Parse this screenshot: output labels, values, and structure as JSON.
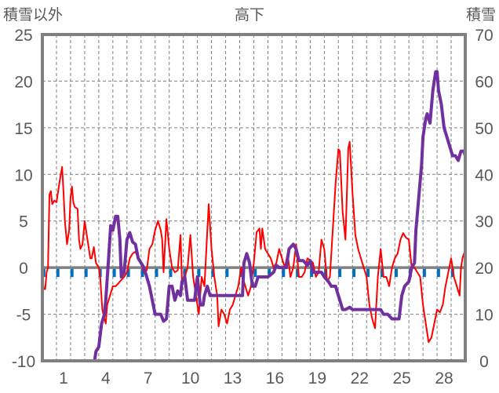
{
  "chart_data": {
    "type": "line",
    "title": "高下",
    "ylabel_left": "積雪以外",
    "ylabel_right": "積雪",
    "xlim": [
      -0.5,
      29.5
    ],
    "ylim_left": [
      -10,
      25
    ],
    "ylim_right": [
      0,
      70
    ],
    "yticks_left": [
      "25",
      "20",
      "15",
      "10",
      "5",
      "0",
      "-5",
      "-10"
    ],
    "yticks_right": [
      "70",
      "60",
      "50",
      "40",
      "30",
      "20",
      "10",
      "0"
    ],
    "xtick_labels": [
      "1",
      "4",
      "7",
      "10",
      "13",
      "16",
      "19",
      "22",
      "25",
      "28"
    ],
    "grid": true,
    "colors": {
      "temp": "#ff0000",
      "snow": "#7030a0",
      "marker": "#0070c0",
      "frame": "#808080"
    },
    "series": [
      {
        "name": "積雪以外",
        "axis": "left",
        "points": [
          [
            -0.5,
            -1.2
          ],
          [
            -0.4,
            -2.3
          ],
          [
            -0.3,
            -2.3
          ],
          [
            -0.2,
            -0.5
          ],
          [
            -0.1,
            0
          ],
          [
            0,
            7.8
          ],
          [
            0.1,
            8.2
          ],
          [
            0.2,
            6.8
          ],
          [
            0.35,
            7.2
          ],
          [
            0.5,
            7
          ],
          [
            0.6,
            8
          ],
          [
            0.75,
            9.5
          ],
          [
            0.9,
            10.8
          ],
          [
            1.0,
            8
          ],
          [
            1.1,
            5
          ],
          [
            1.25,
            2.5
          ],
          [
            1.4,
            4
          ],
          [
            1.5,
            7.5
          ],
          [
            1.6,
            8.7
          ],
          [
            1.7,
            7
          ],
          [
            1.8,
            6.5
          ],
          [
            2.0,
            6.3
          ],
          [
            2.1,
            3
          ],
          [
            2.2,
            2
          ],
          [
            2.35,
            2.5
          ],
          [
            2.5,
            5
          ],
          [
            2.6,
            4
          ],
          [
            2.7,
            3
          ],
          [
            2.9,
            1
          ],
          [
            3.0,
            1
          ],
          [
            3.15,
            2.2
          ],
          [
            3.3,
            0.5
          ],
          [
            3.5,
            0
          ],
          [
            3.6,
            -1
          ],
          [
            3.75,
            -4.5
          ],
          [
            3.9,
            -5.5
          ],
          [
            4.0,
            -6
          ],
          [
            4.1,
            -4
          ],
          [
            4.3,
            -3
          ],
          [
            4.5,
            -2
          ],
          [
            4.7,
            -2
          ],
          [
            5.0,
            -1.5
          ],
          [
            5.3,
            -1
          ],
          [
            5.5,
            -0.5
          ],
          [
            5.7,
            1
          ],
          [
            5.9,
            1.5
          ],
          [
            6.1,
            1.7
          ],
          [
            6.3,
            1
          ],
          [
            6.5,
            0.5
          ],
          [
            6.7,
            -0.5
          ],
          [
            6.9,
            -0.3
          ],
          [
            7.1,
            2
          ],
          [
            7.3,
            2.5
          ],
          [
            7.5,
            4
          ],
          [
            7.7,
            5
          ],
          [
            7.9,
            4
          ],
          [
            8.0,
            3
          ],
          [
            8.1,
            -0.5
          ],
          [
            8.3,
            5.2
          ],
          [
            8.5,
            2
          ],
          [
            8.7,
            0
          ],
          [
            8.9,
            -0.5
          ],
          [
            9.1,
            -0.3
          ],
          [
            9.3,
            3.5
          ],
          [
            9.4,
            -1.5
          ],
          [
            9.6,
            -1
          ],
          [
            9.8,
            0
          ],
          [
            10.0,
            3.5
          ],
          [
            10.2,
            -1
          ],
          [
            10.4,
            -3
          ],
          [
            10.6,
            -5
          ],
          [
            10.8,
            -1
          ],
          [
            11.0,
            -2
          ],
          [
            11.1,
            1
          ],
          [
            11.3,
            6.8
          ],
          [
            11.5,
            2
          ],
          [
            11.7,
            -1
          ],
          [
            11.9,
            -3
          ],
          [
            12.0,
            -6.3
          ],
          [
            12.2,
            -4.5
          ],
          [
            12.4,
            -5
          ],
          [
            12.6,
            -6
          ],
          [
            12.8,
            -4.5
          ],
          [
            13.0,
            -4
          ],
          [
            13.2,
            -3
          ],
          [
            13.4,
            -2
          ],
          [
            13.5,
            -1
          ],
          [
            13.6,
            0
          ],
          [
            13.8,
            -1.5
          ],
          [
            14.0,
            -2.5
          ],
          [
            14.1,
            -3
          ],
          [
            14.3,
            -2
          ],
          [
            14.5,
            0.5
          ],
          [
            14.7,
            3.8
          ],
          [
            14.9,
            4.2
          ],
          [
            15.0,
            2
          ],
          [
            15.1,
            4.2
          ],
          [
            15.3,
            2
          ],
          [
            15.5,
            1.5
          ],
          [
            15.7,
            1
          ],
          [
            15.9,
            0
          ],
          [
            16.1,
            0.5
          ],
          [
            16.3,
            2
          ],
          [
            16.5,
            1
          ],
          [
            16.7,
            0
          ],
          [
            16.9,
            1.5
          ],
          [
            17.1,
            -1
          ],
          [
            17.3,
            0
          ],
          [
            17.5,
            2.5
          ],
          [
            17.7,
            -1
          ],
          [
            17.9,
            -1
          ],
          [
            18.1,
            -0.5
          ],
          [
            18.3,
            1
          ],
          [
            18.5,
            0.8
          ],
          [
            18.7,
            0.5
          ],
          [
            18.9,
            -1
          ],
          [
            19.1,
            -0.5
          ],
          [
            19.3,
            3
          ],
          [
            19.5,
            2
          ],
          [
            19.7,
            -1.5
          ],
          [
            19.9,
            -1
          ],
          [
            20.1,
            4
          ],
          [
            20.3,
            9
          ],
          [
            20.5,
            12.7
          ],
          [
            20.6,
            12.5
          ],
          [
            20.8,
            6
          ],
          [
            21.0,
            3
          ],
          [
            21.2,
            12.8
          ],
          [
            21.3,
            13.5
          ],
          [
            21.5,
            8
          ],
          [
            21.7,
            3.5
          ],
          [
            21.9,
            2
          ],
          [
            22.1,
            1
          ],
          [
            22.3,
            0
          ],
          [
            22.5,
            -1
          ],
          [
            22.7,
            -4
          ],
          [
            22.9,
            -5.5
          ],
          [
            23.1,
            -6.5
          ],
          [
            23.3,
            -1
          ],
          [
            23.5,
            2
          ],
          [
            23.7,
            -1
          ],
          [
            23.9,
            -1
          ],
          [
            24.1,
            -2
          ],
          [
            24.3,
            0
          ],
          [
            24.5,
            1
          ],
          [
            24.7,
            1.5
          ],
          [
            24.9,
            3
          ],
          [
            25.1,
            3.7
          ],
          [
            25.3,
            3.2
          ],
          [
            25.5,
            3
          ],
          [
            25.7,
            0
          ],
          [
            25.9,
            0
          ],
          [
            26.1,
            -0.5
          ],
          [
            26.3,
            -1
          ],
          [
            26.5,
            -4
          ],
          [
            26.7,
            -6
          ],
          [
            26.9,
            -8
          ],
          [
            27.1,
            -7.5
          ],
          [
            27.3,
            -6
          ],
          [
            27.5,
            -4.5
          ],
          [
            27.7,
            -4.8
          ],
          [
            27.9,
            -4
          ],
          [
            28.1,
            -2
          ],
          [
            28.3,
            -0.5
          ],
          [
            28.5,
            1
          ],
          [
            28.7,
            -1
          ],
          [
            28.9,
            -2
          ],
          [
            29.1,
            -3
          ],
          [
            29.2,
            0
          ],
          [
            29.3,
            1
          ],
          [
            29.4,
            1.5
          ],
          [
            29.5,
            0.7
          ]
        ]
      },
      {
        "name": "積雪",
        "axis": "right",
        "points": [
          [
            -0.5,
            0
          ],
          [
            3.2,
            0
          ],
          [
            3.3,
            2
          ],
          [
            3.5,
            3
          ],
          [
            3.7,
            8
          ],
          [
            3.9,
            10
          ],
          [
            4.0,
            13
          ],
          [
            4.2,
            22
          ],
          [
            4.35,
            29
          ],
          [
            4.5,
            28
          ],
          [
            4.7,
            31
          ],
          [
            4.85,
            31
          ],
          [
            5.0,
            26
          ],
          [
            5.1,
            18
          ],
          [
            5.3,
            19
          ],
          [
            5.5,
            26
          ],
          [
            5.7,
            27.5
          ],
          [
            5.9,
            25.5
          ],
          [
            6.1,
            25
          ],
          [
            6.3,
            22
          ],
          [
            6.5,
            21
          ],
          [
            6.7,
            20
          ],
          [
            6.9,
            18
          ],
          [
            7.1,
            16
          ],
          [
            7.3,
            13
          ],
          [
            7.5,
            10
          ],
          [
            7.9,
            10
          ],
          [
            8.1,
            8.5
          ],
          [
            8.3,
            9
          ],
          [
            8.5,
            16
          ],
          [
            8.7,
            16
          ],
          [
            8.9,
            13
          ],
          [
            9.1,
            15
          ],
          [
            9.3,
            14
          ],
          [
            9.4,
            17
          ],
          [
            9.6,
            18
          ],
          [
            9.8,
            13
          ],
          [
            10.3,
            13
          ],
          [
            10.5,
            18
          ],
          [
            10.7,
            12
          ],
          [
            10.9,
            12
          ],
          [
            11.0,
            14
          ],
          [
            11.2,
            16
          ],
          [
            11.4,
            14
          ],
          [
            13.7,
            14
          ],
          [
            13.8,
            21
          ],
          [
            14.0,
            23
          ],
          [
            14.2,
            21
          ],
          [
            14.4,
            16
          ],
          [
            14.6,
            16
          ],
          [
            14.8,
            18
          ],
          [
            15.5,
            18
          ],
          [
            15.9,
            19
          ],
          [
            16.1,
            20.5
          ],
          [
            16.3,
            20
          ],
          [
            16.8,
            20
          ],
          [
            17.0,
            24
          ],
          [
            17.3,
            25
          ],
          [
            17.5,
            24
          ],
          [
            17.7,
            21.5
          ],
          [
            18.0,
            21.5
          ],
          [
            18.3,
            20.5
          ],
          [
            18.5,
            21.5
          ],
          [
            18.7,
            19
          ],
          [
            19.3,
            19
          ],
          [
            19.5,
            18
          ],
          [
            19.8,
            17
          ],
          [
            20.0,
            16
          ],
          [
            20.3,
            16
          ],
          [
            20.5,
            14
          ],
          [
            20.8,
            11
          ],
          [
            21.0,
            11
          ],
          [
            21.3,
            11.5
          ],
          [
            21.5,
            11
          ],
          [
            23.5,
            11
          ],
          [
            23.7,
            10
          ],
          [
            24.0,
            10
          ],
          [
            24.3,
            9
          ],
          [
            24.8,
            9
          ],
          [
            25.0,
            14
          ],
          [
            25.2,
            16
          ],
          [
            25.5,
            17
          ],
          [
            25.7,
            20
          ],
          [
            25.9,
            21
          ],
          [
            26.0,
            28
          ],
          [
            26.2,
            35
          ],
          [
            26.4,
            42
          ],
          [
            26.5,
            48
          ],
          [
            26.7,
            52
          ],
          [
            26.8,
            53
          ],
          [
            27.0,
            51
          ],
          [
            27.2,
            58
          ],
          [
            27.4,
            62
          ],
          [
            27.5,
            62
          ],
          [
            27.6,
            58
          ],
          [
            27.8,
            55
          ],
          [
            28.0,
            50
          ],
          [
            28.2,
            48
          ],
          [
            28.4,
            46
          ],
          [
            28.6,
            44
          ],
          [
            28.8,
            44
          ],
          [
            29.0,
            43
          ],
          [
            29.2,
            45
          ],
          [
            29.4,
            45
          ],
          [
            29.5,
            44
          ]
        ]
      }
    ]
  }
}
